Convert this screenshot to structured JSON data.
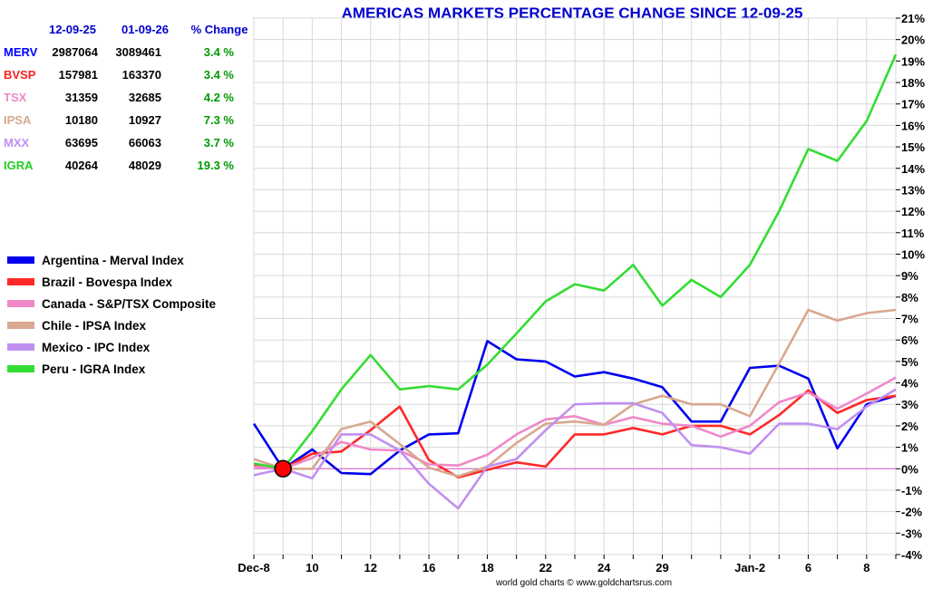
{
  "chart_data": {
    "type": "line",
    "title": "AMERICAS MARKETS PERCENTAGE CHANGE SINCE 12-09-25",
    "footer": "world gold charts © www.goldchartsrus.com",
    "xlabel": "",
    "ylabel": "",
    "ylim": [
      -4,
      21
    ],
    "ytick_labels": [
      "21%",
      "20%",
      "19%",
      "18%",
      "17%",
      "16%",
      "15%",
      "14%",
      "13%",
      "12%",
      "11%",
      "10%",
      "9%",
      "8%",
      "7%",
      "6%",
      "5%",
      "4%",
      "3%",
      "2%",
      "1%",
      "0%",
      "-1%",
      "-2%",
      "-3%",
      "-4%"
    ],
    "x_tick_labels": [
      {
        "index": 0,
        "label": "Dec-8"
      },
      {
        "index": 2,
        "label": "10"
      },
      {
        "index": 4,
        "label": "12"
      },
      {
        "index": 6,
        "label": "16"
      },
      {
        "index": 8,
        "label": "18"
      },
      {
        "index": 10,
        "label": "22"
      },
      {
        "index": 12,
        "label": "24"
      },
      {
        "index": 14,
        "label": "29"
      },
      {
        "index": 17,
        "label": "Jan-2"
      },
      {
        "index": 19,
        "label": "6"
      },
      {
        "index": 21,
        "label": "8"
      }
    ],
    "n_points": 23,
    "base_index": 1,
    "table": {
      "headers": [
        "12-09-25",
        "01-09-26",
        "% Change"
      ],
      "rows": [
        {
          "name": "MERV",
          "start": "2987064",
          "end": "3089461",
          "change": "3.4 %",
          "color": "#0000ff"
        },
        {
          "name": "BVSP",
          "start": "157981",
          "end": "163370",
          "change": "3.4 %",
          "color": "#ff2020"
        },
        {
          "name": "TSX",
          "start": "31359",
          "end": "32685",
          "change": "4.2 %",
          "color": "#f088c8"
        },
        {
          "name": "IPSA",
          "start": "10180",
          "end": "10927",
          "change": "7.3 %",
          "color": "#d8a890"
        },
        {
          "name": "MXX",
          "start": "63695",
          "end": "66063",
          "change": "3.7 %",
          "color": "#c090f0"
        },
        {
          "name": "IGRA",
          "start": "40264",
          "end": "48029",
          "change": "19.3 %",
          "color": "#22cc22"
        }
      ],
      "change_color": "#009900"
    },
    "series": [
      {
        "name": "Argentina - Merval Index",
        "color": "#0000ee",
        "values": [
          2.1,
          0,
          0.9,
          -0.2,
          -0.25,
          0.85,
          1.6,
          1.65,
          5.95,
          5.1,
          5.0,
          4.3,
          4.5,
          4.2,
          3.8,
          2.2,
          2.2,
          4.7,
          4.8,
          4.2,
          0.95,
          3.0,
          3.4
        ]
      },
      {
        "name": "Brazil - Bovespa Index",
        "color": "#ff2828",
        "values": [
          0.15,
          0,
          0.7,
          0.8,
          1.8,
          2.9,
          0.4,
          -0.4,
          -0.05,
          0.3,
          0.1,
          1.6,
          1.6,
          1.9,
          1.6,
          2.0,
          2.0,
          1.6,
          2.5,
          3.65,
          2.6,
          3.2,
          3.4
        ]
      },
      {
        "name": "Canada - S&P/TSX Composite",
        "color": "#f088c8",
        "values": [
          0.1,
          0,
          0.5,
          1.25,
          0.9,
          0.85,
          0.2,
          0.15,
          0.65,
          1.6,
          2.3,
          2.45,
          2.05,
          2.4,
          2.1,
          2.0,
          1.5,
          2.0,
          3.1,
          3.55,
          2.8,
          3.5,
          4.25
        ]
      },
      {
        "name": "Chile - IPSA Index",
        "color": "#d8a890",
        "values": [
          0.45,
          0,
          0,
          1.85,
          2.2,
          1.15,
          0.05,
          -0.35,
          0.1,
          1.2,
          2.1,
          2.2,
          2.05,
          3.0,
          3.4,
          3.0,
          3.0,
          2.45,
          4.9,
          7.4,
          6.9,
          7.25,
          7.4
        ]
      },
      {
        "name": "Mexico - IPC Index",
        "color": "#c090f0",
        "values": [
          -0.3,
          0,
          -0.45,
          1.6,
          1.6,
          0.85,
          -0.7,
          -1.85,
          0.1,
          0.45,
          1.8,
          3.0,
          3.05,
          3.05,
          2.6,
          1.1,
          1.0,
          0.7,
          2.1,
          2.1,
          1.85,
          2.9,
          3.7
        ]
      },
      {
        "name": "Peru - IGRA Index",
        "color": "#33dd33",
        "values": [
          0.25,
          0,
          1.75,
          3.7,
          5.3,
          3.7,
          3.85,
          3.7,
          4.85,
          6.3,
          7.8,
          8.6,
          8.3,
          9.5,
          7.6,
          8.8,
          8.0,
          9.5,
          12.0,
          14.9,
          14.35,
          16.2,
          19.3
        ]
      }
    ]
  }
}
